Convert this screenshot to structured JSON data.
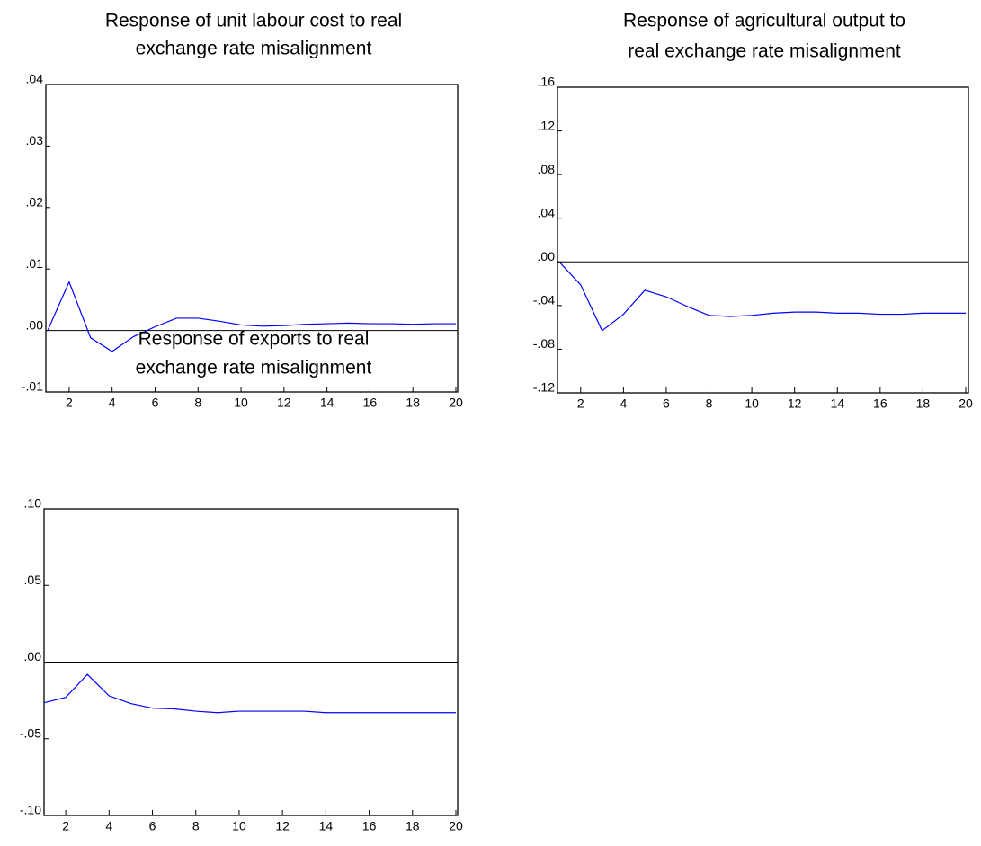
{
  "chart_data": [
    {
      "type": "line",
      "title": [
        "Response of unit labour cost to real",
        "exchange rate misalignment"
      ],
      "x": [
        1,
        2,
        3,
        4,
        5,
        6,
        7,
        8,
        9,
        10,
        11,
        12,
        13,
        14,
        15,
        16,
        17,
        18,
        19,
        20
      ],
      "series": [
        {
          "color": "#0000ff",
          "values": [
            0,
            0.0079,
            -0.0012,
            -0.0034,
            -0.001,
            0.0006,
            0.002,
            0.002,
            0.0015,
            0.0009,
            0.0007,
            0.0008,
            0.001,
            0.0011,
            0.0012,
            0.0011,
            0.0011,
            0.001,
            0.0011,
            0.0011
          ]
        }
      ],
      "xlim": [
        1,
        20
      ],
      "xticks": [
        2,
        4,
        6,
        8,
        10,
        12,
        14,
        16,
        18,
        20
      ],
      "ylim": [
        -0.01,
        0.04
      ],
      "yticks": [
        {
          "value": -0.01,
          "label": "-.01"
        },
        {
          "value": 0,
          "label": ".00"
        },
        {
          "value": 0.01,
          "label": ".01"
        },
        {
          "value": 0.02,
          "label": ".02"
        },
        {
          "value": 0.03,
          "label": ".03"
        },
        {
          "value": 0.04,
          "label": ".04"
        }
      ]
    },
    {
      "type": "line",
      "title": [
        "Response of agricultural output to",
        "real exchange rate misalignment"
      ],
      "x": [
        1,
        2,
        3,
        4,
        5,
        6,
        7,
        8,
        9,
        10,
        11,
        12,
        13,
        14,
        15,
        16,
        17,
        18,
        19,
        20
      ],
      "series": [
        {
          "color": "#0000ff",
          "values": [
            0,
            -0.021,
            -0.063,
            -0.048,
            -0.026,
            -0.032,
            -0.041,
            -0.049,
            -0.05,
            -0.049,
            -0.047,
            -0.046,
            -0.046,
            -0.047,
            -0.047,
            -0.048,
            -0.048,
            -0.047,
            -0.047,
            -0.047
          ]
        }
      ],
      "xlim": [
        1,
        20
      ],
      "xticks": [
        2,
        4,
        6,
        8,
        10,
        12,
        14,
        16,
        18,
        20
      ],
      "ylim": [
        -0.12,
        0.16
      ],
      "yticks": [
        {
          "value": -0.12,
          "label": "-.12"
        },
        {
          "value": -0.08,
          "label": "-.08"
        },
        {
          "value": -0.04,
          "label": "-.04"
        },
        {
          "value": 0,
          "label": ".00"
        },
        {
          "value": 0.04,
          "label": ".04"
        },
        {
          "value": 0.08,
          "label": ".08"
        },
        {
          "value": 0.12,
          "label": ".12"
        },
        {
          "value": 0.16,
          "label": ".16"
        }
      ]
    },
    {
      "type": "line",
      "title": [
        "Response of exports to real",
        "exchange rate misalignment"
      ],
      "x": [
        1,
        2,
        3,
        4,
        5,
        6,
        7,
        8,
        9,
        10,
        11,
        12,
        13,
        14,
        15,
        16,
        17,
        18,
        19,
        20
      ],
      "series": [
        {
          "color": "#0000ff",
          "values": [
            -0.0265,
            -0.023,
            -0.008,
            -0.022,
            -0.027,
            -0.03,
            -0.0305,
            -0.032,
            -0.033,
            -0.032,
            -0.032,
            -0.032,
            -0.032,
            -0.033,
            -0.033,
            -0.033,
            -0.033,
            -0.033,
            -0.033,
            -0.033
          ]
        }
      ],
      "xlim": [
        1,
        20
      ],
      "xticks": [
        2,
        4,
        6,
        8,
        10,
        12,
        14,
        16,
        18,
        20
      ],
      "ylim": [
        -0.1,
        0.1
      ],
      "yticks": [
        {
          "value": -0.1,
          "label": "-.10"
        },
        {
          "value": -0.05,
          "label": "-.05"
        },
        {
          "value": 0,
          "label": ".00"
        },
        {
          "value": 0.05,
          "label": ".05"
        },
        {
          "value": 0.1,
          "label": ".10"
        }
      ]
    }
  ]
}
